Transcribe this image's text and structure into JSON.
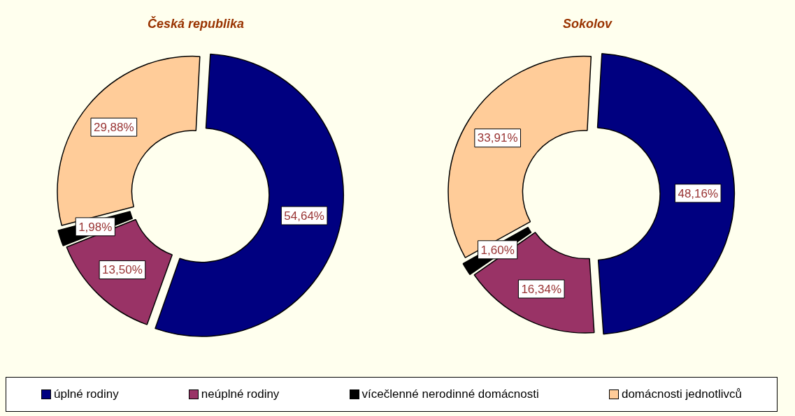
{
  "chart_data": [
    {
      "type": "donut",
      "title": "Česká republika",
      "categories": [
        "úplné rodiny",
        "neúplné rodiny",
        "vícečlenné nerodinné domácnosti",
        "domácnosti jednotlivců"
      ],
      "values": [
        54.64,
        13.5,
        1.98,
        29.88
      ],
      "value_labels": [
        "54,64%",
        "13,50%",
        "1,98%",
        "29,88%"
      ],
      "colors": [
        "#000080",
        "#993366",
        "#000000",
        "#ffcc99"
      ],
      "legend": "bottom"
    },
    {
      "type": "donut",
      "title": "Sokolov",
      "categories": [
        null,
        null,
        null,
        null
      ],
      "values": [
        48.16,
        16.34,
        1.6,
        33.91
      ],
      "value_labels": [
        "48,16%",
        "16,34%",
        "1,60%",
        "33,91%"
      ],
      "colors": [
        "#000080",
        "#993366",
        "#000000",
        "#ffcc99"
      ]
    }
  ]
}
